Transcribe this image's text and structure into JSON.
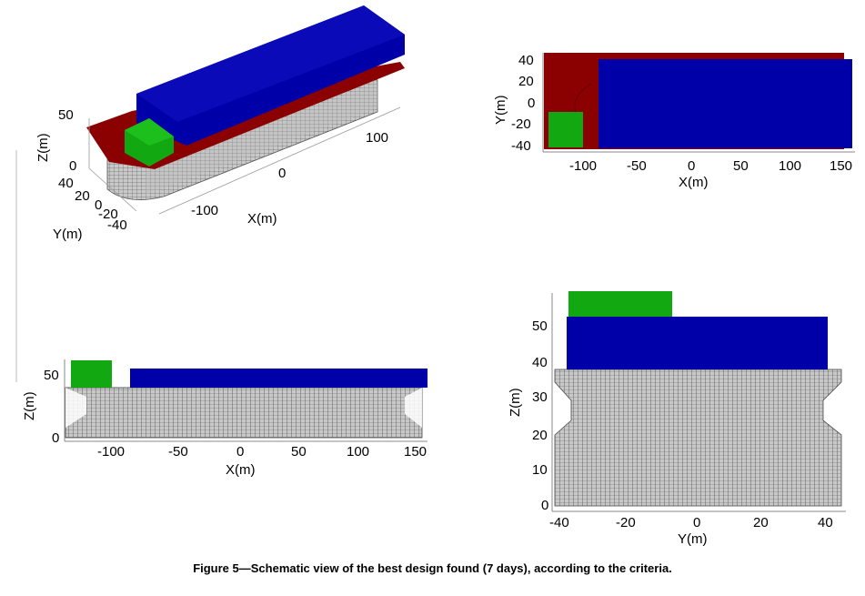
{
  "caption": "Figure 5—Schematic view of the best design found (7 days), according to the criteria.",
  "colors": {
    "deck": "#0000a8",
    "block": "#12a812",
    "base": "#8b0000",
    "hull": "#c8c8c8",
    "hull_line": "#3a3a3a"
  },
  "views": {
    "iso": {
      "z_label": "Z(m)",
      "x_label": "X(m)",
      "y_label": "Y(m)",
      "z_ticks": [
        "50",
        "0"
      ],
      "x_ticks": [
        "100",
        "0",
        "-100"
      ],
      "y_ticks": [
        "40",
        "20",
        "0",
        "-20",
        "-40"
      ]
    },
    "top": {
      "x_label": "X(m)",
      "y_label": "Y(m)",
      "x_ticks": [
        "-100",
        "-50",
        "0",
        "50",
        "100",
        "150"
      ],
      "y_ticks": [
        "40",
        "20",
        "0",
        "-20",
        "-40"
      ]
    },
    "side": {
      "x_label": "X(m)",
      "z_label": "Z(m)",
      "x_ticks": [
        "-100",
        "-50",
        "0",
        "50",
        "100",
        "150"
      ],
      "z_ticks": [
        "50",
        "0"
      ]
    },
    "front": {
      "x_label": "Y(m)",
      "z_label": "Z(m)",
      "x_ticks": [
        "-40",
        "-20",
        "0",
        "20",
        "40"
      ],
      "z_ticks": [
        "50",
        "40",
        "30",
        "20",
        "10",
        "0"
      ]
    }
  }
}
